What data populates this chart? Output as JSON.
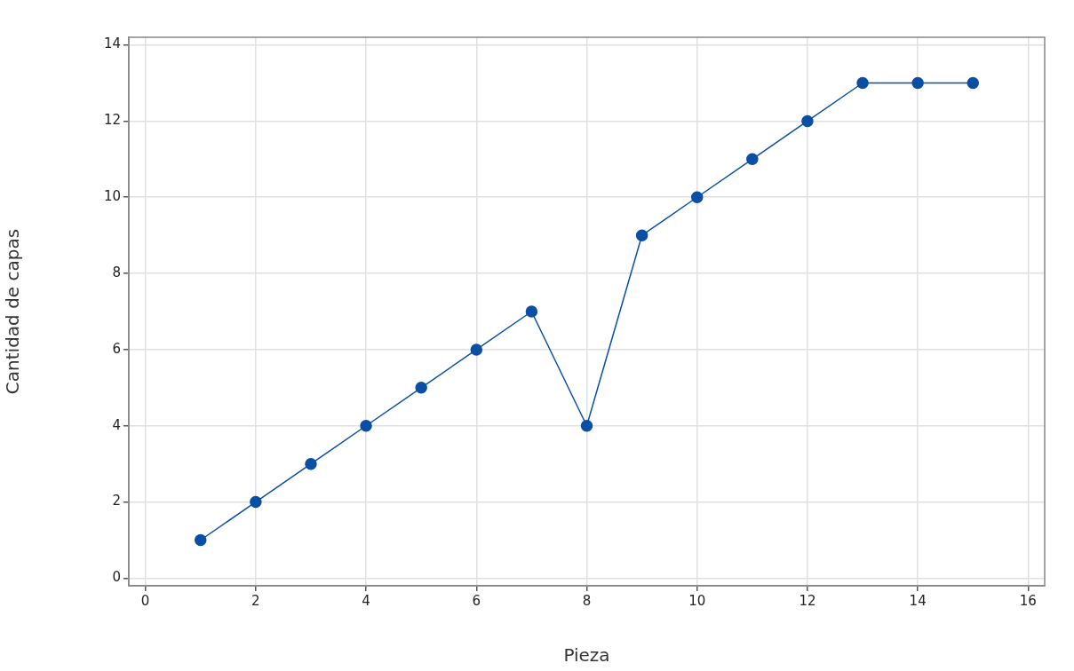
{
  "chart_data": {
    "type": "line",
    "xlabel": "Pieza",
    "ylabel": "Cantidad de capas",
    "x": [
      1,
      2,
      3,
      4,
      5,
      6,
      7,
      8,
      9,
      10,
      11,
      12,
      13,
      14,
      15
    ],
    "series": [
      {
        "color": "#0a4fa3",
        "values": [
          1,
          2,
          3,
          4,
          5,
          6,
          7,
          4,
          9,
          10,
          11,
          12,
          13,
          13,
          13
        ]
      }
    ],
    "xlim": [
      -0.3,
      16.3
    ],
    "ylim": [
      -0.2,
      14.2
    ],
    "xticks": [
      0,
      2,
      4,
      6,
      8,
      10,
      12,
      14,
      16
    ],
    "yticks": [
      0,
      2,
      4,
      6,
      8,
      10,
      12,
      14
    ],
    "grid": true,
    "marker": "circle",
    "line_style": "solid",
    "legend": false
  }
}
